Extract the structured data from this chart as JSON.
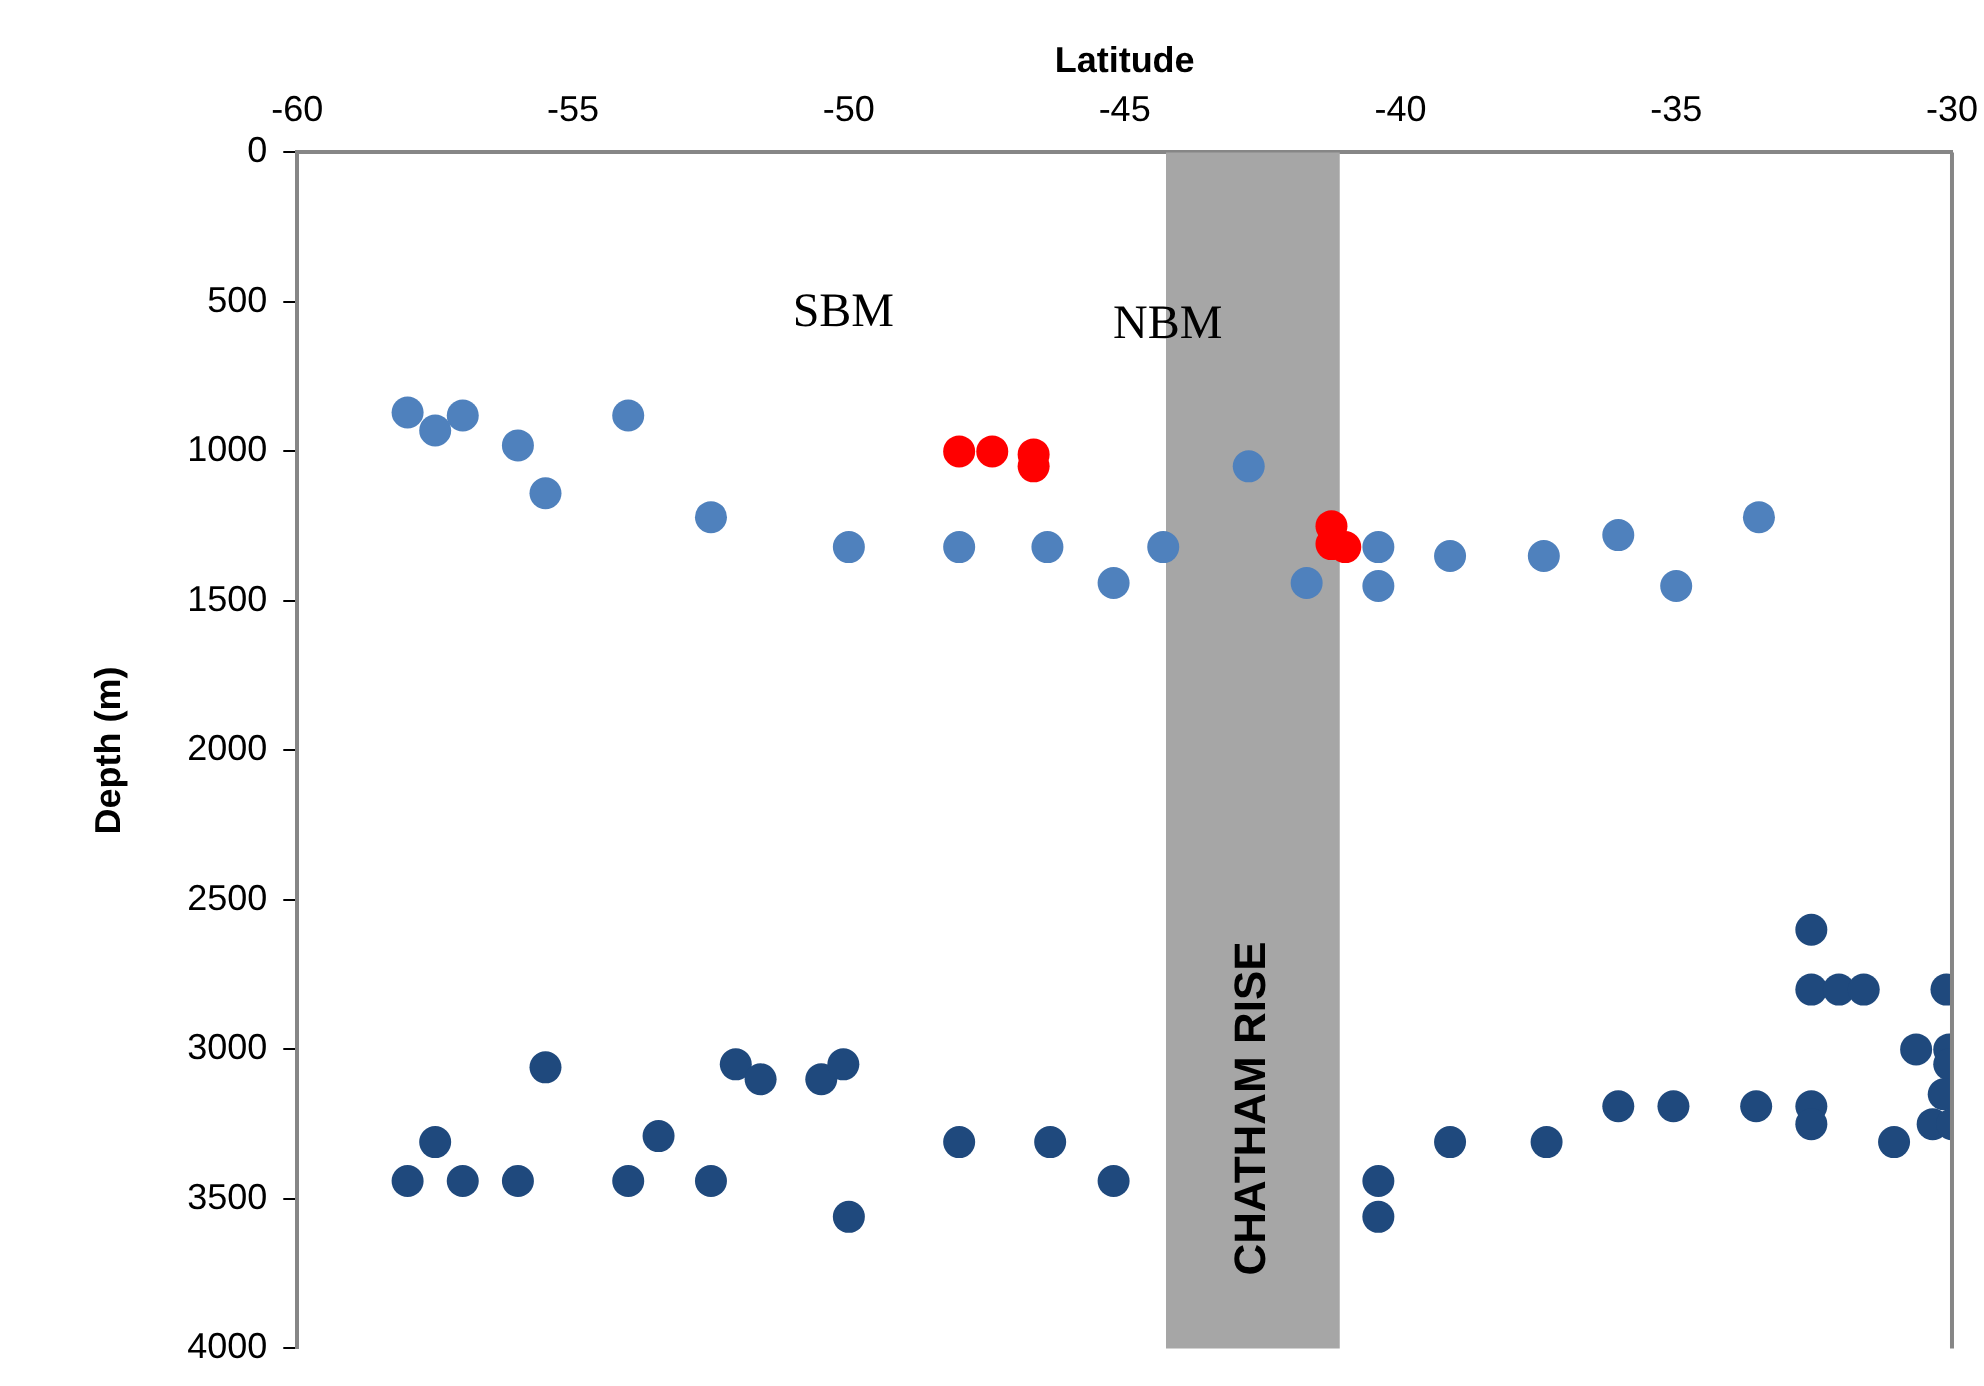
{
  "chart_data": {
    "type": "scatter",
    "xlabel": "Latitude",
    "ylabel": "Depth (m)",
    "marker": "circle",
    "grid": false,
    "legend": false,
    "xlim": [
      -60,
      -30
    ],
    "xticks": [
      -60,
      -55,
      -50,
      -45,
      -40,
      -35,
      -30
    ],
    "ylim": [
      4000,
      0
    ],
    "yticks": [
      0,
      500,
      1000,
      1500,
      2000,
      2500,
      3000,
      3500,
      4000
    ],
    "annotations": [
      "SBM",
      "NBM"
    ],
    "bands": [
      {
        "axis": "x",
        "from": -44.25,
        "to": -41.1,
        "label": "CHATHAM RISE",
        "color": "#a6a6a6"
      }
    ],
    "series": [
      {
        "color": "#4f81bd",
        "x": [
          -58.0,
          -57.5,
          -57.0,
          -56.0,
          -55.5,
          -54.0,
          -52.5,
          -50.0,
          -48.0,
          -46.4,
          -45.2,
          -44.3,
          -42.75,
          -41.7,
          -40.4,
          -40.4,
          -39.1,
          -37.4,
          -36.05,
          -35.0,
          -33.5
        ],
        "values": [
          870,
          930,
          880,
          980,
          1140,
          880,
          1220,
          1320,
          1320,
          1320,
          1440,
          1320,
          1050,
          1440,
          1320,
          1450,
          1350,
          1350,
          1280,
          1450,
          1220
        ]
      },
      {
        "color": "#ff0000",
        "x": [
          -48.0,
          -47.4,
          -46.65,
          -46.65,
          -41.25,
          -41.25,
          -41.0
        ],
        "values": [
          1000,
          1000,
          1010,
          1050,
          1250,
          1310,
          1320
        ]
      },
      {
        "color": "#1f497d",
        "x": [
          -58.0,
          -57.5,
          -57.0,
          -56.0,
          -55.5,
          -54.0,
          -53.45,
          -52.5,
          -52.05,
          -51.6,
          -50.5,
          -50.1,
          -50.0,
          -48.0,
          -46.35,
          -45.2,
          -40.4,
          -40.4,
          -39.1,
          -37.35,
          -36.05,
          -35.05,
          -33.55,
          -32.55,
          -32.55,
          -32.05,
          -31.6,
          -32.55,
          -32.55,
          -31.05,
          -30.65,
          -30.1,
          -30.05,
          -30.05,
          -30.15,
          -30.35,
          -30.0
        ],
        "values": [
          3440,
          3310,
          3440,
          3440,
          3060,
          3440,
          3290,
          3440,
          3050,
          3100,
          3100,
          3050,
          3560,
          3310,
          3310,
          3440,
          3440,
          3560,
          3310,
          3310,
          3190,
          3190,
          3190,
          2600,
          2800,
          2800,
          2800,
          3190,
          3250,
          3310,
          3000,
          2800,
          3000,
          3050,
          3150,
          3250,
          3250
        ]
      }
    ]
  }
}
